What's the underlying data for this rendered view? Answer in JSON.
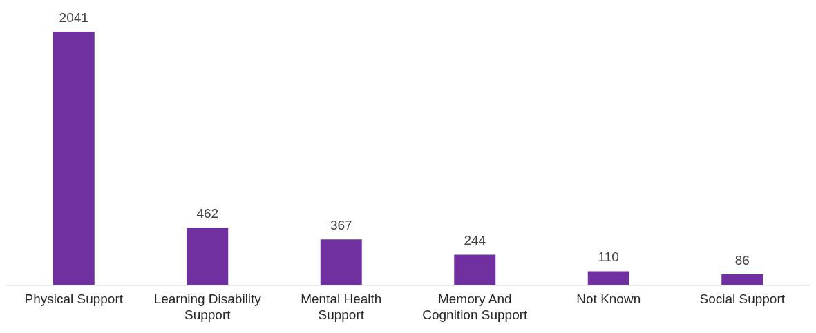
{
  "chart_data": {
    "type": "bar",
    "categories": [
      "Physical Support",
      "Learning Disability Support",
      "Mental Health Support",
      "Memory And Cognition Support",
      "Not Known",
      "Social Support"
    ],
    "values": [
      2041,
      462,
      367,
      244,
      110,
      86
    ],
    "color": "#7030a0",
    "data_labels": true,
    "grid": false,
    "legend": false
  }
}
